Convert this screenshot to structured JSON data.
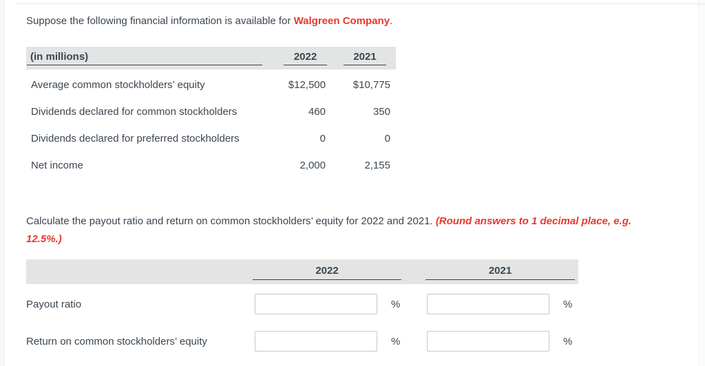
{
  "colors": {
    "accent_red": "#e7382c",
    "text_dark": "#3b4651",
    "table_header_gray": "#e3e4e4",
    "input_border": "#c6c9cb"
  },
  "intro": {
    "prefix": "Suppose the following financial information is available for ",
    "company": "Walgreen Company",
    "suffix": "."
  },
  "table1": {
    "header": {
      "label": "(in millions)",
      "col_2022": "2022",
      "col_2021": "2021"
    },
    "rows": [
      {
        "label": "Average common stockholders’ equity",
        "y2022": "$12,500",
        "y2021": "$10,775"
      },
      {
        "label": "Dividends declared for common stockholders",
        "y2022": "460",
        "y2021": "350"
      },
      {
        "label": "Dividends declared for preferred stockholders",
        "y2022": "0",
        "y2021": "0"
      },
      {
        "label": "Net income",
        "y2022": "2,000",
        "y2021": "2,155"
      }
    ]
  },
  "instruction": {
    "text": "Calculate the payout ratio and return on common stockholders’ equity for 2022 and 2021. ",
    "emphasis_line1": "(Round answers to 1 decimal place, e.g.",
    "emphasis_line2": "12.5%.)"
  },
  "table2": {
    "header": {
      "col_2022": "2022",
      "col_2021": "2021"
    },
    "rows": [
      {
        "label": "Payout ratio",
        "value_2022": "",
        "value_2021": "",
        "unit": "%"
      },
      {
        "label": "Return on common stockholders’ equity",
        "value_2022": "",
        "value_2021": "",
        "unit": "%"
      }
    ]
  }
}
